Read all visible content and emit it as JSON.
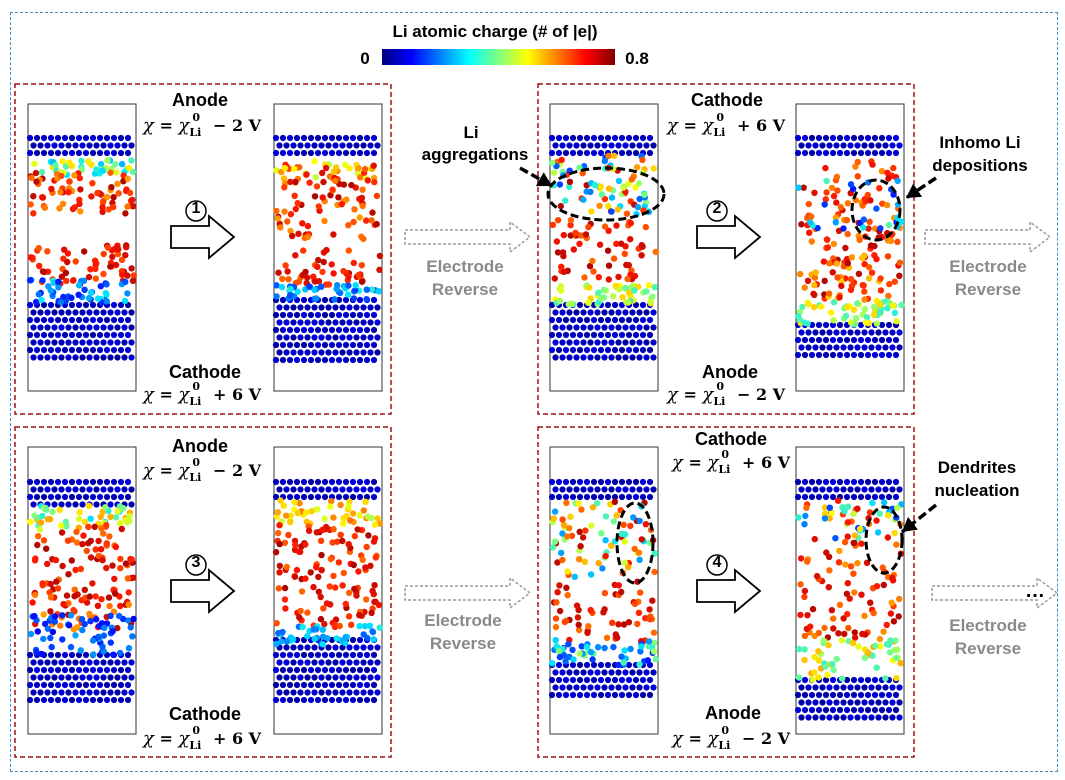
{
  "colorbar": {
    "title": "Li atomic charge (# of |e|)",
    "min_label": "0",
    "max_label": "0.8",
    "colors": [
      "#000080",
      "#0000ff",
      "#0080ff",
      "#00ffff",
      "#80ff80",
      "#ffff00",
      "#ff8000",
      "#ff0000",
      "#800000"
    ]
  },
  "panels": [
    {
      "step": "1",
      "top_electrode": "Anode",
      "top_formula": {
        "chi": "χ",
        "sup": "0",
        "sub": "Li",
        "rest": "− 2 V"
      },
      "bottom_electrode": "Cathode",
      "bottom_formula": {
        "chi": "χ",
        "sup": "0",
        "sub": "Li",
        "rest": "+ 6 V"
      }
    },
    {
      "step": "2",
      "top_electrode": "Cathode",
      "top_formula": {
        "chi": "χ",
        "sup": "0",
        "sub": "Li",
        "rest": "+ 6 V"
      },
      "bottom_electrode": "Anode",
      "bottom_formula": {
        "chi": "χ",
        "sup": "0",
        "sub": "Li",
        "rest": "− 2 V"
      }
    },
    {
      "step": "3",
      "top_electrode": "Anode",
      "top_formula": {
        "chi": "χ",
        "sup": "0",
        "sub": "Li",
        "rest": "− 2 V"
      },
      "bottom_electrode": "Cathode",
      "bottom_formula": {
        "chi": "χ",
        "sup": "0",
        "sub": "Li",
        "rest": "+ 6 V"
      }
    },
    {
      "step": "4",
      "top_electrode": "Cathode",
      "top_formula": {
        "chi": "χ",
        "sup": "0",
        "sub": "Li",
        "rest": "+ 6 V"
      },
      "bottom_electrode": "Anode",
      "bottom_formula": {
        "chi": "χ",
        "sup": "0",
        "sub": "Li",
        "rest": "− 2 V"
      }
    }
  ],
  "transition_label_line1": "Electrode",
  "transition_label_line2": "Reverse",
  "annotations": {
    "li_aggregations": [
      "Li",
      "aggregations"
    ],
    "inhomo": [
      "Inhomo Li",
      "depositions"
    ],
    "dendrites": [
      "Dendrites",
      "nucleation"
    ]
  },
  "ellipsis": "…",
  "colors": {
    "panel_border": "#a01010",
    "frame_border": "#3f8fbf",
    "gray_arrow": "#9a9a9a"
  }
}
